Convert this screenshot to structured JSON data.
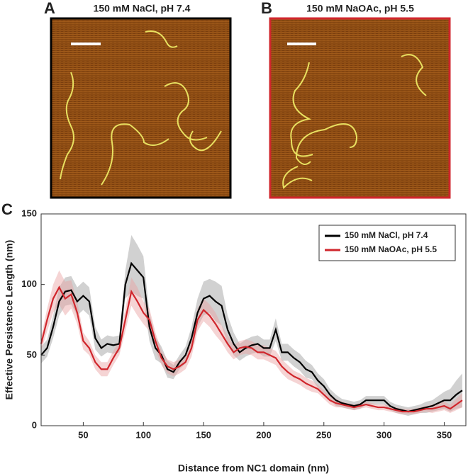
{
  "panels": [
    {
      "label": "A",
      "title": "150 mM NaCl, pH 7.4",
      "border": "#000000"
    },
    {
      "label": "B",
      "title": "150 mM NaOAc, pH 5.5",
      "border": "#d0262c"
    }
  ],
  "chart_data": {
    "type": "line",
    "panel_label": "C",
    "xlabel": "Distance from NC1 domain (nm)",
    "ylabel": "Effective Persistence Length (nm)",
    "xlim": [
      15,
      368
    ],
    "ylim": [
      0,
      150
    ],
    "xticks": [
      50,
      100,
      150,
      200,
      250,
      300,
      350
    ],
    "yticks": [
      0,
      50,
      100,
      150
    ],
    "legend": "upper right",
    "x": [
      15,
      20,
      25,
      30,
      35,
      40,
      45,
      50,
      55,
      60,
      65,
      70,
      75,
      80,
      85,
      90,
      95,
      100,
      105,
      110,
      115,
      120,
      125,
      130,
      135,
      140,
      145,
      150,
      155,
      160,
      165,
      170,
      175,
      180,
      185,
      190,
      195,
      200,
      205,
      210,
      215,
      220,
      225,
      230,
      235,
      240,
      245,
      250,
      255,
      260,
      265,
      270,
      275,
      280,
      285,
      290,
      295,
      300,
      305,
      310,
      315,
      320,
      325,
      330,
      335,
      340,
      345,
      350,
      355,
      360,
      365
    ],
    "series": [
      {
        "name": "150 mM NaCl, pH 7.4",
        "color": "#000000",
        "band_color": "#9a9a9a",
        "values": [
          50,
          55,
          70,
          88,
          95,
          96,
          88,
          92,
          88,
          62,
          55,
          58,
          57,
          58,
          100,
          115,
          110,
          105,
          70,
          55,
          50,
          40,
          38,
          45,
          50,
          62,
          80,
          90,
          92,
          88,
          85,
          68,
          58,
          52,
          55,
          57,
          58,
          55,
          55,
          68,
          52,
          52,
          48,
          45,
          40,
          38,
          32,
          28,
          22,
          18,
          16,
          15,
          14,
          15,
          18,
          18,
          18,
          18,
          14,
          12,
          11,
          10,
          11,
          12,
          13,
          14,
          16,
          18,
          18,
          22,
          25
        ],
        "error": [
          6,
          6,
          8,
          10,
          10,
          10,
          10,
          10,
          10,
          8,
          6,
          6,
          6,
          6,
          10,
          20,
          18,
          15,
          10,
          8,
          6,
          6,
          5,
          5,
          6,
          8,
          10,
          12,
          12,
          14,
          14,
          10,
          8,
          6,
          6,
          6,
          6,
          6,
          6,
          8,
          6,
          6,
          6,
          6,
          6,
          5,
          5,
          5,
          4,
          4,
          3,
          3,
          3,
          3,
          3,
          3,
          3,
          3,
          3,
          3,
          3,
          3,
          3,
          3,
          4,
          4,
          5,
          6,
          8,
          10,
          12
        ]
      },
      {
        "name": "150 mM NaOAc, pH 5.5",
        "color": "#d0262c",
        "band_color": "#e8a0a0",
        "values": [
          58,
          75,
          90,
          98,
          90,
          93,
          80,
          60,
          55,
          45,
          40,
          40,
          48,
          55,
          75,
          95,
          88,
          80,
          75,
          60,
          48,
          42,
          40,
          42,
          45,
          55,
          75,
          82,
          78,
          72,
          65,
          58,
          52,
          55,
          56,
          55,
          52,
          52,
          50,
          48,
          42,
          38,
          35,
          33,
          30,
          28,
          26,
          22,
          18,
          16,
          15,
          14,
          13,
          14,
          15,
          14,
          13,
          13,
          12,
          11,
          10,
          10,
          10,
          11,
          12,
          12,
          13,
          14,
          12,
          15,
          18
        ],
        "error": [
          5,
          8,
          10,
          12,
          12,
          10,
          8,
          6,
          5,
          5,
          5,
          5,
          5,
          5,
          8,
          10,
          10,
          8,
          8,
          6,
          5,
          5,
          5,
          5,
          5,
          6,
          8,
          8,
          8,
          8,
          6,
          6,
          5,
          5,
          5,
          5,
          5,
          5,
          5,
          5,
          5,
          5,
          4,
          4,
          4,
          4,
          3,
          3,
          3,
          3,
          2,
          2,
          2,
          2,
          2,
          2,
          2,
          2,
          2,
          2,
          2,
          2,
          2,
          2,
          2,
          3,
          3,
          3,
          3,
          4,
          5
        ]
      }
    ]
  }
}
